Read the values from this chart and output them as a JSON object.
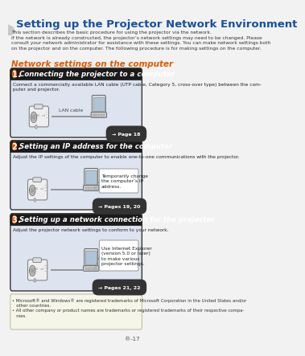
{
  "title": "Setting up the Projector Network Environment",
  "title_color": "#1a4f9e",
  "page_bg": "#f2f2f2",
  "section_heading": "Network settings on the computer",
  "section_heading_color": "#e05a00",
  "intro_text": "This section describes the basic procedure for using the projector via the network.\nIf the network is already constructed, the projector’s network settings may need to be changed. Please\nconsult your network administrator for assistance with these settings. You can make network settings both\non the projector and on the computer. The following procedure is for making settings on the computer.",
  "box1_title": "1. Connecting the projector to a computer",
  "box1_number": "1",
  "box1_desc": "Connect a commercially available LAN cable (UTP cable, Category 5, cross-over type) between the com-\nputer and projector.",
  "box1_label": "LAN cable",
  "box1_page": "→ Page 18",
  "box2_title": "2. Setting an IP address for the computer",
  "box2_number": "2",
  "box2_desc": "Adjust the IP settings of the computer to enable one-to-one communications with the projector.",
  "box2_callout": "Temporarily change\nthe computer’s IP\naddress.",
  "box2_page": "→ Pages 19, 20",
  "box3_title": "3. Setting up a network connection for the projector",
  "box3_number": "3",
  "box3_desc": "Adjust the projector network settings to conform to your network.",
  "box3_callout": "Use Internet Explorer\n(version 5.0 or later)\nto make various\nprojector settings.",
  "box3_page": "→ Pages 21, 22",
  "footer_text": "• Microsoft® and Windows® are registered trademarks of Microsoft Corporation in the United States and/or\n   other countries.\n• All other company or product names are trademarks or registered trademarks of their respective compa-\n   nies.",
  "page_num": "®-17",
  "box_header_bg": "#1a1a1a",
  "box_header_text": "#ffffff",
  "box_body_bg": "#dde4f0",
  "box_border_color": "#333333",
  "footer_bg": "#f5f5e8",
  "footer_border": "#bbbb99",
  "page_ref_bg": "#333333",
  "page_ref_text": "#ffffff",
  "curve_color": "#cccccc",
  "title_font_size": 9.5,
  "section_font_size": 7.5,
  "header_font_size": 6.2,
  "body_font_size": 4.3,
  "ref_font_size": 4.5
}
